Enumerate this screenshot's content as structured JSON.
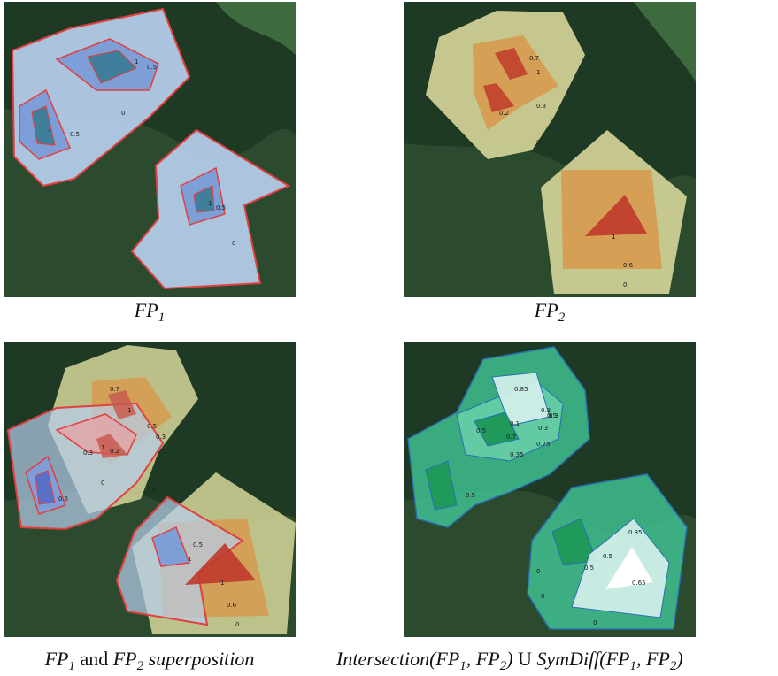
{
  "captions": {
    "fp1": {
      "base": "FP",
      "sub": "1"
    },
    "fp2": {
      "base": "FP",
      "sub": "2"
    },
    "superposition": {
      "a": "FP",
      "a_sub": "1",
      "mid": " and ",
      "b": "FP",
      "b_sub": "2",
      "tail": " superposition"
    },
    "combined": {
      "pre": "Intersection(FP",
      "s1": "1",
      "sep": ", FP",
      "s2": "2",
      "mid": ") ",
      "union": "U",
      "mid2": " SymDiff(FP",
      "s3": "1",
      "sep2": ", FP",
      "s4": "2",
      "end": ")"
    }
  },
  "labels": {
    "fp1": [
      "1",
      "0.5",
      "0",
      "1",
      "0.5",
      "1",
      "0.5",
      "0"
    ],
    "fp2": [
      "0.7",
      "1",
      "0.3",
      "0.2",
      "0",
      "1",
      "0.6",
      "0"
    ],
    "superposition": [
      "0.7",
      "1",
      "0.3",
      "0.2",
      "0.3",
      "1",
      "0.5",
      "0",
      "0",
      "0.5",
      "1",
      "0.5",
      "1",
      "0.6",
      "0"
    ],
    "combined": [
      "0.85",
      "0.3",
      "0.5",
      "0.3",
      "0.5",
      "0.1",
      "0.35",
      "0.75",
      "0.3",
      "0.5",
      "0.7",
      "0.85",
      "0.5",
      "0.5",
      "0.65",
      "0",
      "0",
      "0"
    ]
  },
  "colors": {
    "fp1_fill": "#b7cfee",
    "fp1_edge": "#e04040",
    "fp2_fill": "#d7d79a",
    "fp2_mid": "#d69a4f",
    "fp2_core": "#c0392b",
    "combined_fill": "#3fbf8f",
    "combined_edge": "#2a6fb0"
  }
}
